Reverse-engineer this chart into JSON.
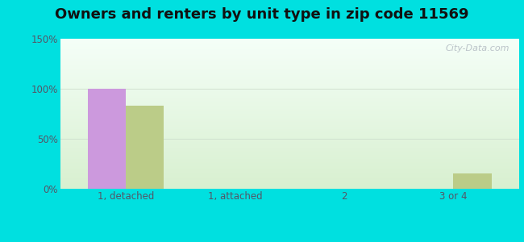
{
  "title": "Owners and renters by unit type in zip code 11569",
  "categories": [
    "1, detached",
    "1, attached",
    "2",
    "3 or 4"
  ],
  "owner_values": [
    100,
    0,
    0,
    0
  ],
  "renter_values": [
    83,
    0,
    0,
    15
  ],
  "owner_color": "#cc99dd",
  "renter_color": "#bbcc88",
  "ylim": [
    0,
    150
  ],
  "yticks": [
    0,
    50,
    100,
    150
  ],
  "ytick_labels": [
    "0%",
    "50%",
    "100%",
    "150%"
  ],
  "bar_width": 0.35,
  "outer_bg": "#00e0e0",
  "watermark": "City-Data.com",
  "title_fontsize": 13,
  "tick_fontsize": 8.5
}
